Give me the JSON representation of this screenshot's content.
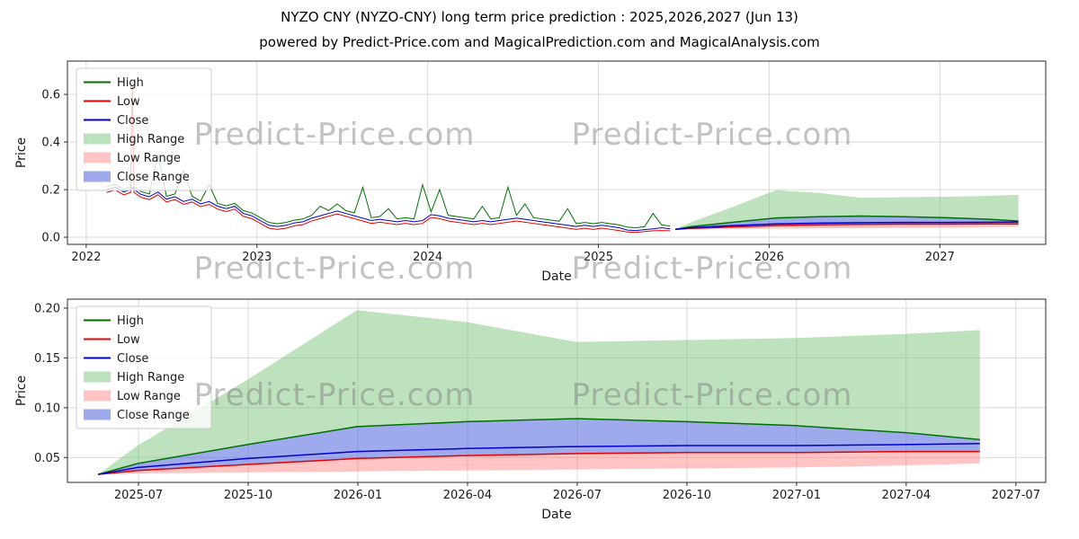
{
  "title": "NYZO CNY (NYZO-CNY) long term price prediction : 2025,2026,2027 (Jun 13)",
  "subtitle": "powered by Predict-Price.com and MagicalPrediction.com and MagicalAnalysis.com",
  "watermark": "Predict-Price.com",
  "colors": {
    "high_line": "#007000",
    "low_line": "#e40000",
    "close_line": "#0000cc",
    "high_range": "rgba(110,190,110,0.45)",
    "low_range": "rgba(255,110,110,0.40)",
    "close_range": "rgba(80,100,220,0.55)",
    "grid": "#d9d9d9",
    "spine": "#2a2a2a",
    "text": "#1a1a1a"
  },
  "chart_data": [
    {
      "type": "line",
      "name": "long-term-chart",
      "xlabel": "Date",
      "ylabel": "Price",
      "x_range": [
        2021.89,
        2027.62
      ],
      "y_range": [
        -0.03,
        0.74
      ],
      "x_ticks": {
        "values": [
          2022,
          2023,
          2024,
          2025,
          2026,
          2027
        ],
        "labels": [
          "2022",
          "2023",
          "2024",
          "2025",
          "2026",
          "2027"
        ]
      },
      "y_ticks": {
        "values": [
          0.0,
          0.2,
          0.4,
          0.6
        ],
        "labels": [
          "0.0",
          "0.2",
          "0.4",
          "0.6"
        ]
      },
      "legend": [
        "High",
        "Low",
        "Close",
        "High Range",
        "Low Range",
        "Close Range"
      ],
      "history": {
        "x": [
          2022.12,
          2022.17,
          2022.22,
          2022.26,
          2022.27,
          2022.28,
          2022.32,
          2022.37,
          2022.42,
          2022.47,
          2022.52,
          2022.57,
          2022.62,
          2022.67,
          2022.72,
          2022.77,
          2022.82,
          2022.87,
          2022.92,
          2022.97,
          2023.02,
          2023.07,
          2023.12,
          2023.17,
          2023.22,
          2023.27,
          2023.32,
          2023.37,
          2023.42,
          2023.47,
          2023.52,
          2023.57,
          2023.62,
          2023.67,
          2023.72,
          2023.77,
          2023.82,
          2023.87,
          2023.92,
          2023.97,
          2024.02,
          2024.07,
          2024.12,
          2024.17,
          2024.22,
          2024.27,
          2024.32,
          2024.37,
          2024.42,
          2024.47,
          2024.52,
          2024.57,
          2024.62,
          2024.67,
          2024.72,
          2024.77,
          2024.82,
          2024.87,
          2024.92,
          2024.97,
          2025.02,
          2025.07,
          2025.12,
          2025.17,
          2025.22,
          2025.27,
          2025.32,
          2025.37,
          2025.42
        ],
        "close": [
          0.2,
          0.21,
          0.19,
          0.2,
          0.21,
          0.2,
          0.18,
          0.17,
          0.19,
          0.16,
          0.17,
          0.15,
          0.16,
          0.14,
          0.15,
          0.13,
          0.12,
          0.13,
          0.1,
          0.09,
          0.07,
          0.05,
          0.045,
          0.05,
          0.06,
          0.065,
          0.08,
          0.09,
          0.1,
          0.11,
          0.1,
          0.09,
          0.08,
          0.07,
          0.075,
          0.07,
          0.065,
          0.07,
          0.065,
          0.07,
          0.095,
          0.09,
          0.08,
          0.075,
          0.07,
          0.065,
          0.07,
          0.065,
          0.07,
          0.075,
          0.08,
          0.075,
          0.07,
          0.065,
          0.06,
          0.055,
          0.05,
          0.045,
          0.05,
          0.045,
          0.05,
          0.045,
          0.04,
          0.03,
          0.028,
          0.032,
          0.035,
          0.04,
          0.035
        ],
        "high": [
          0.212,
          0.222,
          0.202,
          0.212,
          0.65,
          0.212,
          0.192,
          0.182,
          0.35,
          0.172,
          0.182,
          0.28,
          0.172,
          0.152,
          0.22,
          0.142,
          0.132,
          0.142,
          0.112,
          0.102,
          0.082,
          0.062,
          0.057,
          0.062,
          0.072,
          0.077,
          0.092,
          0.13,
          0.112,
          0.14,
          0.112,
          0.102,
          0.21,
          0.082,
          0.087,
          0.12,
          0.077,
          0.082,
          0.077,
          0.22,
          0.107,
          0.2,
          0.092,
          0.087,
          0.082,
          0.077,
          0.13,
          0.077,
          0.082,
          0.21,
          0.092,
          0.14,
          0.082,
          0.077,
          0.072,
          0.067,
          0.12,
          0.057,
          0.062,
          0.057,
          0.062,
          0.057,
          0.052,
          0.042,
          0.04,
          0.044,
          0.1,
          0.052,
          0.047
        ],
        "low": [
          0.188,
          0.198,
          0.178,
          0.188,
          0.65,
          0.188,
          0.168,
          0.158,
          0.178,
          0.148,
          0.158,
          0.138,
          0.148,
          0.128,
          0.138,
          0.118,
          0.108,
          0.118,
          0.088,
          0.078,
          0.058,
          0.038,
          0.033,
          0.038,
          0.048,
          0.053,
          0.068,
          0.078,
          0.088,
          0.098,
          0.088,
          0.078,
          0.068,
          0.058,
          0.063,
          0.058,
          0.053,
          0.058,
          0.053,
          0.058,
          0.083,
          0.078,
          0.068,
          0.063,
          0.058,
          0.053,
          0.058,
          0.053,
          0.058,
          0.063,
          0.068,
          0.063,
          0.058,
          0.053,
          0.048,
          0.043,
          0.038,
          0.033,
          0.038,
          0.033,
          0.038,
          0.033,
          0.028,
          0.022,
          0.02,
          0.024,
          0.027,
          0.028,
          0.027
        ]
      },
      "forecast": {
        "x": [
          2025.45,
          2025.54,
          2025.79,
          2026.04,
          2026.29,
          2026.54,
          2026.79,
          2027.04,
          2027.29,
          2027.46
        ],
        "high": [
          0.033,
          0.044,
          0.063,
          0.081,
          0.086,
          0.089,
          0.086,
          0.082,
          0.075,
          0.068
        ],
        "low": [
          0.033,
          0.037,
          0.043,
          0.049,
          0.052,
          0.054,
          0.055,
          0.055,
          0.056,
          0.056
        ],
        "close": [
          0.033,
          0.04,
          0.049,
          0.056,
          0.059,
          0.061,
          0.062,
          0.062,
          0.063,
          0.064
        ],
        "high_range_upper": [
          0.033,
          0.062,
          0.128,
          0.198,
          0.186,
          0.166,
          0.168,
          0.17,
          0.174,
          0.178
        ],
        "low_range_lower": [
          0.033,
          0.034,
          0.035,
          0.036,
          0.037,
          0.038,
          0.039,
          0.04,
          0.042,
          0.044
        ]
      }
    },
    {
      "type": "line",
      "name": "forecast-detail-chart",
      "xlabel": "Date",
      "ylabel": "Price",
      "x_range": [
        2025.38,
        2027.61
      ],
      "y_range": [
        0.025,
        0.209
      ],
      "x_ticks": {
        "values": [
          2025.542,
          2025.792,
          2026.042,
          2026.292,
          2026.542,
          2026.792,
          2027.042,
          2027.292,
          2027.542
        ],
        "labels": [
          "2025-07",
          "2025-10",
          "2026-01",
          "2026-04",
          "2026-07",
          "2026-10",
          "2027-01",
          "2027-04",
          "2027-07"
        ]
      },
      "y_ticks": {
        "values": [
          0.05,
          0.1,
          0.15,
          0.2
        ],
        "labels": [
          "0.05",
          "0.10",
          "0.15",
          "0.20"
        ]
      },
      "legend": [
        "High",
        "Low",
        "Close",
        "High Range",
        "Low Range",
        "Close Range"
      ],
      "forecast": {
        "x": [
          2025.45,
          2025.54,
          2025.79,
          2026.04,
          2026.29,
          2026.54,
          2026.79,
          2027.04,
          2027.29,
          2027.46
        ],
        "high": [
          0.033,
          0.044,
          0.063,
          0.081,
          0.086,
          0.089,
          0.086,
          0.082,
          0.075,
          0.068
        ],
        "low": [
          0.033,
          0.037,
          0.043,
          0.049,
          0.052,
          0.054,
          0.055,
          0.055,
          0.056,
          0.056
        ],
        "close": [
          0.033,
          0.04,
          0.049,
          0.056,
          0.059,
          0.061,
          0.062,
          0.062,
          0.063,
          0.064
        ],
        "high_range_upper": [
          0.033,
          0.062,
          0.128,
          0.198,
          0.186,
          0.166,
          0.168,
          0.17,
          0.174,
          0.178
        ],
        "low_range_lower": [
          0.033,
          0.034,
          0.035,
          0.036,
          0.037,
          0.038,
          0.039,
          0.04,
          0.042,
          0.044
        ]
      }
    }
  ]
}
